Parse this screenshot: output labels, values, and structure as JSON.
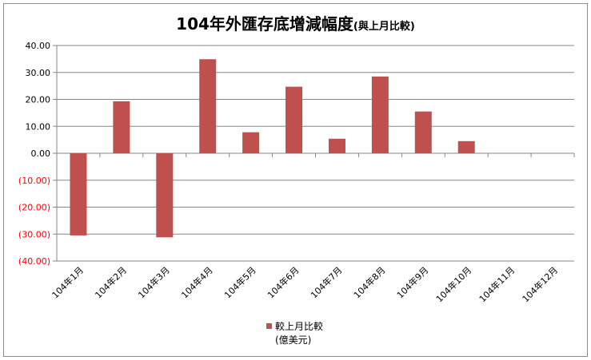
{
  "chart_data": {
    "type": "bar",
    "title": "104年外匯存底增減幅度",
    "subtitle": "(與上月比較)",
    "categories": [
      "104年1月",
      "104年2月",
      "104年3月",
      "104年4月",
      "104年5月",
      "104年6月",
      "104年7月",
      "104年8月",
      "104年9月",
      "104年10月",
      "104年11月",
      "104年12月"
    ],
    "series": [
      {
        "name": "較上月比較",
        "values": [
          -30.5,
          19.3,
          -31.2,
          34.9,
          7.8,
          24.7,
          5.4,
          28.5,
          15.5,
          4.5,
          null,
          null
        ],
        "color": "#c0504d"
      }
    ],
    "legend": {
      "label": "較上月比較",
      "unit": "(億美元)",
      "position": "bottom"
    },
    "ylim": [
      -40,
      40
    ],
    "y_ticks": [
      40,
      30,
      20,
      10,
      0,
      -10,
      -20,
      -30,
      -40
    ],
    "y_tick_labels": [
      "40.00",
      "30.00",
      "20.00",
      "10.00",
      "0.00",
      "(10.00)",
      "(20.00)",
      "(30.00)",
      "(40.00)"
    ],
    "negative_tick_color": "#ff0000",
    "grid": true,
    "xlabel": "",
    "ylabel": ""
  }
}
